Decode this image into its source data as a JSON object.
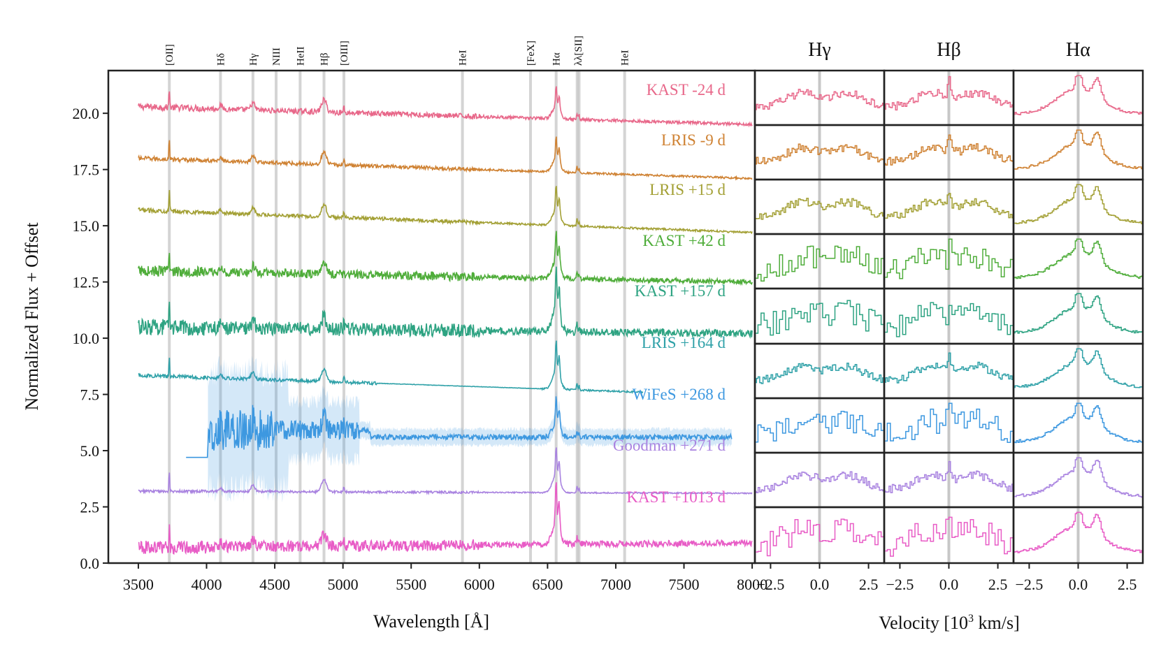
{
  "chart_data": [
    {
      "type": "line",
      "panel": "main-spectra",
      "xlabel": "Wavelength [Å]",
      "ylabel": "Normalized Flux + Offset",
      "xlim": [
        3280,
        8020
      ],
      "ylim": [
        0,
        21.9
      ],
      "xticks": [
        3500,
        4000,
        4500,
        5000,
        5500,
        6000,
        6500,
        7000,
        7500,
        8000
      ],
      "yticks": [
        0.0,
        2.5,
        5.0,
        7.5,
        10.0,
        12.5,
        15.0,
        17.5,
        20.0
      ],
      "ytick_labels": [
        "0.0",
        "2.5",
        "5.0",
        "7.5",
        "10.0",
        "12.5",
        "15.0",
        "17.5",
        "20.0"
      ],
      "line_markers": [
        {
          "label": "[OII]",
          "x": 3727
        },
        {
          "label": "Hδ",
          "x": 4102
        },
        {
          "label": "Hγ",
          "x": 4340
        },
        {
          "label": "NIII",
          "x": 4510
        },
        {
          "label": "HeII",
          "x": 4686
        },
        {
          "label": "Hβ",
          "x": 4861
        },
        {
          "label": "[OIII]",
          "x": 5007
        },
        {
          "label": "HeI",
          "x": 5876
        },
        {
          "label": "[FeX]",
          "x": 6375
        },
        {
          "label": "Hα",
          "x": 6563
        },
        {
          "label": "λλ[SII]",
          "x": 6717,
          "x2": 6731
        },
        {
          "label": "HeI",
          "x": 7065
        }
      ],
      "series": [
        {
          "name": "KAST -24 d",
          "color": "#e8688a",
          "x_range": [
            3500,
            8000
          ],
          "start": 20.3,
          "end": 19.5,
          "noise": 0.12,
          "halpha_peak": 1.2
        },
        {
          "name": "LRIS -9 d",
          "color": "#cf8233",
          "x_range": [
            3500,
            8000
          ],
          "start": 18.0,
          "end": 17.1,
          "noise": 0.08,
          "halpha_peak": 1.3
        },
        {
          "name": "LRIS +15 d",
          "color": "#a3a035",
          "x_range": [
            3500,
            8000
          ],
          "start": 15.7,
          "end": 14.7,
          "noise": 0.08,
          "halpha_peak": 1.5
        },
        {
          "name": "KAST +42 d",
          "color": "#4fad3a",
          "x_range": [
            3500,
            8000
          ],
          "start": 13.0,
          "end": 12.5,
          "noise": 0.2,
          "halpha_peak": 1.8
        },
        {
          "name": "KAST +157 d",
          "color": "#2ea382",
          "x_range": [
            3500,
            8000
          ],
          "start": 10.5,
          "end": 10.2,
          "noise": 0.3,
          "halpha_peak": 2.4
        },
        {
          "name": "LRIS +164 d",
          "color": "#2fa1a8",
          "x_range": [
            3500,
            7200
          ],
          "start": 8.35,
          "end": 7.6,
          "noise": 0.07,
          "halpha_peak": 1.8
        },
        {
          "name": "WiFeS +268 d",
          "color": "#3d98e0",
          "x_range": [
            3850,
            7850
          ],
          "start": 4.7,
          "end": 5.5,
          "noise": 0.4,
          "halpha_peak": 1.5
        },
        {
          "name": "Goodman +271 d",
          "color": "#a983e0",
          "x_range": [
            3500,
            8000
          ],
          "start": 3.2,
          "end": 3.1,
          "noise": 0.05,
          "halpha_peak": 1.7
        },
        {
          "name": "KAST +1013 d",
          "color": "#e85cc6",
          "x_range": [
            3500,
            8000
          ],
          "start": 0.7,
          "end": 0.9,
          "noise": 0.25,
          "halpha_peak": 2.3
        }
      ]
    },
    {
      "type": "line",
      "panel": "velocity-profiles",
      "xlabel": "Velocity [10^3 km/s]",
      "xlim": [
        -3.3,
        3.3
      ],
      "xticks": [
        -2.5,
        0.0,
        2.5
      ],
      "xtick_labels": [
        "−2.5",
        "0.0",
        "2.5"
      ],
      "columns": [
        {
          "title": "Hγ"
        },
        {
          "title": "Hβ"
        },
        {
          "title": "Hα"
        }
      ]
    }
  ]
}
